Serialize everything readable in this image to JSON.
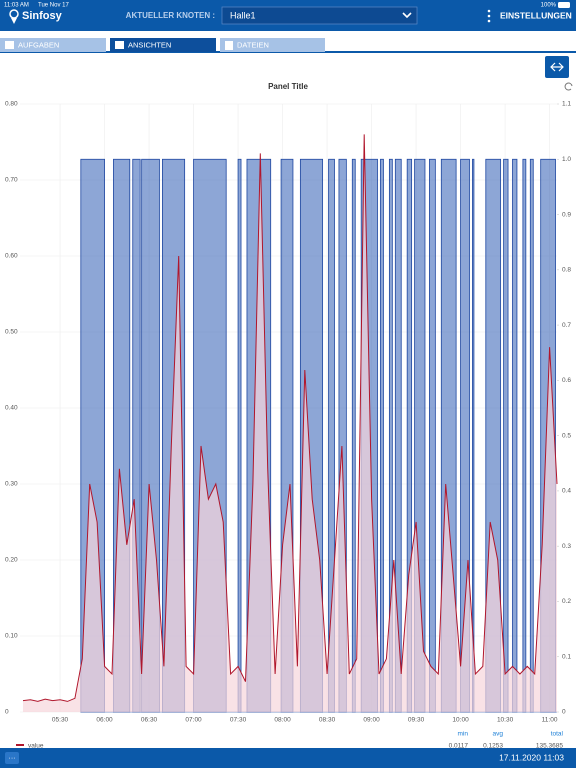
{
  "status_bar": {
    "time": "11:03 AM",
    "date": "Tue Nov 17",
    "battery": "100%"
  },
  "header": {
    "logo": "Sinfosy",
    "node_label": "AKTUELLER KNOTEN :",
    "node_value": "Halle1",
    "settings": "EINSTELLUNGEN"
  },
  "tabs": [
    "AUFGABEN",
    "ANSICHTEN",
    "DATEIEN"
  ],
  "panel": {
    "title": "Panel Title",
    "chart": {
      "type": "line",
      "xlim": [
        "05:03",
        "11:05"
      ],
      "xticks": [
        "05:30",
        "06:00",
        "06:30",
        "07:00",
        "07:30",
        "08:00",
        "08:30",
        "09:00",
        "09:30",
        "10:00",
        "10:30",
        "11:00"
      ],
      "ylim": [
        0,
        0.8
      ],
      "yticks": [
        0,
        {
          "value": 0.1,
          "label": "0.10"
        },
        {
          "value": 0.2,
          "label": "0.20"
        },
        {
          "value": 0.3,
          "label": "0.30"
        },
        {
          "value": 0.4,
          "label": "0.40"
        },
        {
          "value": 0.5,
          "label": "0.50"
        },
        {
          "value": 0.6,
          "label": "0.60"
        },
        {
          "value": 0.7,
          "label": "0.70"
        },
        {
          "value": 0.8,
          "label": "0.80"
        }
      ],
      "y2lim": [
        0,
        1.1
      ],
      "y2ticks": [
        0,
        0.1,
        0.2,
        0.3,
        0.4,
        0.5,
        0.6,
        0.7,
        0.8,
        0.9,
        {
          "value": 1,
          "label": "1.0"
        },
        1.1
      ],
      "grid": true,
      "series": [
        {
          "name": "value",
          "color": "#b0162c",
          "fill": "#f7d6dc",
          "x": [
            "05:05",
            "05:10",
            "05:15",
            "05:20",
            "05:25",
            "05:30",
            "05:35",
            "05:40",
            "05:45",
            "05:50",
            "05:55",
            "06:00",
            "06:05",
            "06:10",
            "06:15",
            "06:20",
            "06:25",
            "06:30",
            "06:35",
            "06:40",
            "06:45",
            "06:50",
            "06:55",
            "07:00",
            "07:05",
            "07:10",
            "07:15",
            "07:20",
            "07:25",
            "07:30",
            "07:35",
            "07:40",
            "07:45",
            "07:50",
            "07:55",
            "08:00",
            "08:05",
            "08:10",
            "08:15",
            "08:20",
            "08:25",
            "08:30",
            "08:35",
            "08:40",
            "08:45",
            "08:50",
            "08:55",
            "09:00",
            "09:05",
            "09:10",
            "09:15",
            "09:20",
            "09:25",
            "09:30",
            "09:35",
            "09:40",
            "09:45",
            "09:50",
            "09:55",
            "10:00",
            "10:05",
            "10:10",
            "10:15",
            "10:20",
            "10:25",
            "10:30",
            "10:35",
            "10:40",
            "10:45",
            "10:50",
            "10:55",
            "11:00",
            "11:05"
          ],
          "values": [
            0.015,
            0.016,
            0.014,
            0.017,
            0.015,
            0.016,
            0.014,
            0.018,
            0.07,
            0.3,
            0.25,
            0.06,
            0.05,
            0.32,
            0.22,
            0.28,
            0.05,
            0.3,
            0.2,
            0.06,
            0.35,
            0.6,
            0.06,
            0.05,
            0.35,
            0.28,
            0.3,
            0.25,
            0.05,
            0.06,
            0.04,
            0.3,
            0.735,
            0.32,
            0.05,
            0.22,
            0.3,
            0.06,
            0.45,
            0.28,
            0.2,
            0.05,
            0.2,
            0.35,
            0.05,
            0.07,
            0.76,
            0.28,
            0.05,
            0.07,
            0.2,
            0.05,
            0.18,
            0.25,
            0.08,
            0.06,
            0.05,
            0.3,
            0.18,
            0.06,
            0.2,
            0.05,
            0.06,
            0.25,
            0.2,
            0.05,
            0.06,
            0.05,
            0.06,
            0.05,
            0.22,
            0.48,
            0.3
          ]
        },
        {
          "color": "#2f5db4",
          "axis": "y2",
          "step": true,
          "x": [
            "05:44",
            "06:00",
            "06:06",
            "06:17",
            "06:19",
            "06:24",
            "06:25",
            "06:37",
            "06:39",
            "06:54",
            "07:00",
            "07:22",
            "07:30",
            "07:32",
            "07:36",
            "07:52",
            "07:59",
            "08:07",
            "08:12",
            "08:27",
            "08:31",
            "08:35",
            "08:38",
            "08:43",
            "08:47",
            "08:49",
            "08:53",
            "09:04",
            "09:06",
            "09:08",
            "09:12",
            "09:14",
            "09:16",
            "09:20",
            "09:24",
            "09:27",
            "09:29",
            "09:36",
            "09:39",
            "09:43",
            "09:47",
            "09:57",
            "10:00",
            "10:06",
            "10:08",
            "10:09",
            "10:17",
            "10:27",
            "10:29",
            "10:32",
            "10:35",
            "10:38",
            "10:42",
            "10:44",
            "10:47",
            "10:49",
            "10:54",
            "11:04"
          ],
          "values": [
            1,
            0,
            1,
            0,
            1,
            0,
            1,
            0,
            1,
            0,
            1,
            0,
            1,
            0,
            1,
            0,
            1,
            0,
            1,
            0,
            1,
            0,
            1,
            0,
            1,
            0,
            1,
            0,
            1,
            0,
            1,
            0,
            1,
            0,
            1,
            0,
            1,
            0,
            1,
            0,
            1,
            0,
            1,
            0,
            1,
            0,
            1,
            0,
            1,
            0,
            1,
            0,
            1,
            0,
            1,
            0,
            1,
            0
          ]
        }
      ]
    },
    "legend": {
      "headers": [
        "min",
        "avg",
        "total"
      ],
      "values": [
        0.0117,
        0.1253,
        135.3685
      ]
    }
  },
  "footer": {
    "timestamp": "17.11.2020 11:03"
  }
}
